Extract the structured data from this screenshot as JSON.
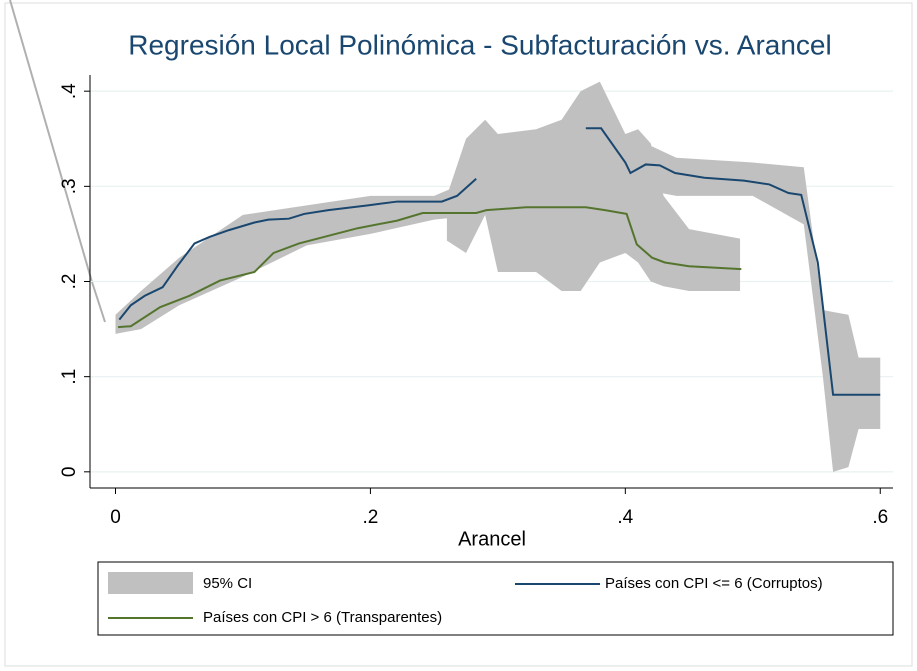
{
  "chart_data": {
    "type": "line",
    "title": "Regresión Local Polinómica - Subfacturación vs. Arancel",
    "x_label": "Arancel",
    "xlim": [
      -0.02,
      0.61
    ],
    "ylim": [
      -0.017,
      0.417
    ],
    "xticks": [
      0,
      {
        "value": 0.2,
        "label": ".2"
      },
      {
        "value": 0.4,
        "label": ".4"
      },
      {
        "value": 0.6,
        "label": ".6"
      }
    ],
    "yticks": [
      0,
      {
        "value": 0.1,
        "label": ".1"
      },
      {
        "value": 0.2,
        "label": ".2"
      },
      {
        "value": 0.3,
        "label": ".3"
      },
      {
        "value": 0.4,
        "label": ".4"
      }
    ],
    "grid": true,
    "ci_label": "95% CI",
    "ci_color": "#c0c0c0",
    "ci": [
      {
        "x": [
          0,
          0.02,
          0.05,
          0.1,
          0.15,
          0.2,
          0.25,
          0.285
        ],
        "upper": [
          0.165,
          0.19,
          0.225,
          0.27,
          0.28,
          0.29,
          0.29,
          0.31
        ],
        "lower": [
          0.145,
          0.15,
          0.175,
          0.205,
          0.238,
          0.25,
          0.265,
          0.27
        ]
      },
      {
        "x": [
          0.26,
          0.275,
          0.29,
          0.3,
          0.33,
          0.35,
          0.365,
          0.38,
          0.4,
          0.41,
          0.42,
          0.43,
          0.45,
          0.49
        ],
        "upper": [
          0.29,
          0.35,
          0.37,
          0.355,
          0.36,
          0.37,
          0.4,
          0.41,
          0.355,
          0.36,
          0.345,
          0.29,
          0.255,
          0.245
        ],
        "lower": [
          0.243,
          0.23,
          0.27,
          0.21,
          0.21,
          0.19,
          0.19,
          0.22,
          0.23,
          0.22,
          0.2,
          0.195,
          0.19,
          0.19
        ]
      },
      {
        "x": [
          0.37,
          0.4,
          0.44,
          0.5,
          0.54,
          0.555,
          0.563,
          0.575,
          0.583,
          0.6
        ],
        "upper": [
          0.38,
          0.355,
          0.33,
          0.325,
          0.32,
          0.17,
          0.168,
          0.165,
          0.12,
          0.12
        ],
        "lower": [
          0.34,
          0.3,
          0.29,
          0.29,
          0.26,
          0.1,
          0,
          0.005,
          0.045,
          0.045
        ]
      }
    ],
    "series": [
      {
        "name": "Países con CPI <= 6 (Corruptos)",
        "color": "#1a476f",
        "x": [
          0.003,
          0.012,
          0.023,
          0.037,
          0.049,
          0.062,
          0.074,
          0.089,
          0.109,
          0.12,
          0.136,
          0.148,
          0.167,
          0.198,
          0.221,
          0.256,
          0.268,
          0.283,
          null,
          0.369,
          0.381,
          0.4,
          0.404,
          0.416,
          0.427,
          0.439,
          0.462,
          0.493,
          0.513,
          0.528,
          0.538,
          0.551,
          0.563,
          0.6
        ],
        "values": [
          0.16,
          0.175,
          0.185,
          0.194,
          0.217,
          0.24,
          0.247,
          0.254,
          0.262,
          0.265,
          0.266,
          0.271,
          0.275,
          0.28,
          0.284,
          0.284,
          0.29,
          0.308,
          null,
          0.361,
          0.361,
          0.325,
          0.314,
          0.323,
          0.322,
          0.314,
          0.309,
          0.306,
          0.302,
          0.293,
          0.291,
          0.22,
          0.081,
          0.081
        ]
      },
      {
        "name": "Países con CPI > 6 (Transparentes)",
        "color": "#55752f",
        "x": [
          0.002,
          0.012,
          0.035,
          0.058,
          0.082,
          0.109,
          0.124,
          0.144,
          0.167,
          0.19,
          0.221,
          0.241,
          0.283,
          0.291,
          0.322,
          0.369,
          0.384,
          0.401,
          0.409,
          0.421,
          0.431,
          0.45,
          0.491
        ],
        "values": [
          0.152,
          0.153,
          0.173,
          0.185,
          0.201,
          0.21,
          0.23,
          0.24,
          0.248,
          0.256,
          0.264,
          0.272,
          0.272,
          0.275,
          0.278,
          0.278,
          0.275,
          0.271,
          0.239,
          0.225,
          0.22,
          0.216,
          0.213
        ]
      }
    ]
  }
}
